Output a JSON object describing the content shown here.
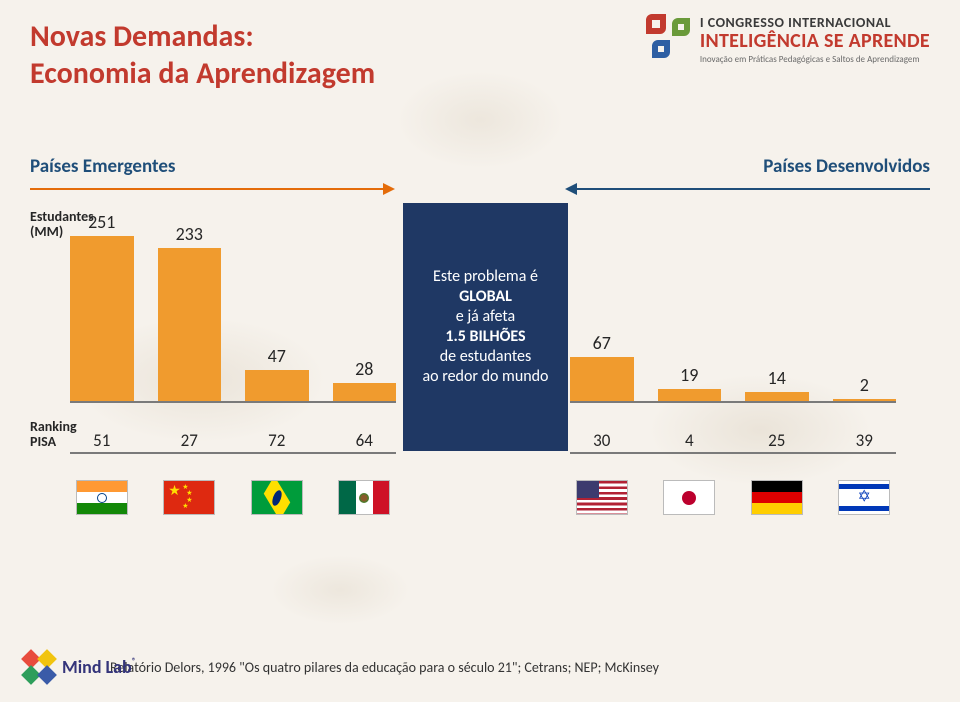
{
  "colors": {
    "title": "#c23a2e",
    "bar": "#f09b2e",
    "axis": "#7a7a7a",
    "text": "#262626",
    "subtitle": "#1f4e79",
    "arrow_left": "#e46c0a",
    "arrow_right": "#1f4e79",
    "center_bg": "#1f3864",
    "footer": "#333333"
  },
  "title": {
    "line1": "Novas Demandas:",
    "line2": "Economia da Aprendizagem",
    "fontsize": 30,
    "color": "#c23a2e"
  },
  "congress": {
    "line1": "I CONGRESSO INTERNACIONAL",
    "line2": "INTELIGÊNCIA SE APRENDE",
    "line3": "Inovação em Práticas Pedagógicas e Saltos de Aprendizagem"
  },
  "subtitles": {
    "left": "Países Emergentes",
    "right": "Países Desenvolvidos",
    "fontsize": 19,
    "color": "#1f4e79"
  },
  "labels": {
    "students_mm_l1": "Estudantes",
    "students_mm_l2": "(MM)",
    "ranking_l1": "Ranking",
    "ranking_l2": "PISA",
    "fontsize": 14,
    "color": "#262626"
  },
  "center": {
    "l1": "Este problema é",
    "l2": "GLOBAL",
    "l3": "e já afeta",
    "l4": "1.5 BILHÕES",
    "l5": "de estudantes",
    "l6": "ao redor do mundo",
    "bg": "#1f3864"
  },
  "chart": {
    "type": "bar",
    "bar_color": "#f09b2e",
    "bar_width": 1.0,
    "max_value": 260,
    "axis_color": "#7a7a7a",
    "label_fontsize": 18,
    "rank_fontsize": 17,
    "left": {
      "countries": [
        "India",
        "China",
        "Brazil",
        "Mexico"
      ],
      "values": [
        251,
        233,
        47,
        28
      ],
      "pisa_rank": [
        51,
        27,
        72,
        64
      ]
    },
    "right": {
      "countries": [
        "USA",
        "Japan",
        "Germany",
        "Israel"
      ],
      "values": [
        67,
        19,
        14,
        2
      ],
      "pisa_rank": [
        30,
        4,
        25,
        39
      ]
    }
  },
  "footer": {
    "text": "Relatório Delors, 1996 \"Os quatro pilares da educação para o século 21\"; Cetrans; NEP; McKinsey",
    "fontsize": 14
  },
  "mindlab": {
    "text": "Mind Lab"
  }
}
